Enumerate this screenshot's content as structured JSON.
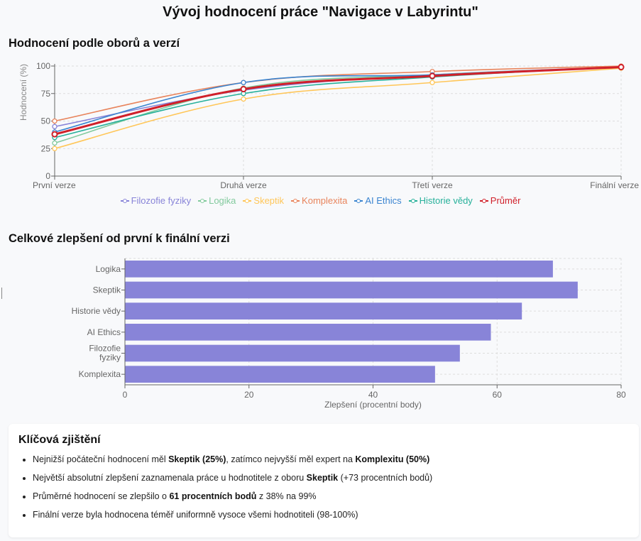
{
  "page": {
    "title": "Vývoj hodnocení práce \"Navigace v Labyrintu\""
  },
  "line_section": {
    "title": "Hodnocení podle oborů a verzí"
  },
  "bar_section": {
    "title": "Celkové zlepšení od první k finální verzi"
  },
  "chart_data": [
    {
      "type": "line",
      "title": "Hodnocení podle oborů a verzí",
      "xlabel": "",
      "ylabel": "Hodnocení (%)",
      "categories": [
        "První verze",
        "Druhá verze",
        "Třetí verze",
        "Finální verze"
      ],
      "ylim": [
        0,
        100
      ],
      "yticks": [
        0,
        25,
        50,
        75,
        100
      ],
      "grid": true,
      "legend_position": "bottom",
      "series": [
        {
          "name": "Filozofie fyziky",
          "color": "#8884d8",
          "values": [
            45,
            78,
            92,
            99
          ]
        },
        {
          "name": "Logika",
          "color": "#82ca9d",
          "values": [
            30,
            80,
            92,
            99
          ]
        },
        {
          "name": "Skeptik",
          "color": "#ffc658",
          "values": [
            25,
            70,
            85,
            98
          ]
        },
        {
          "name": "Komplexita",
          "color": "#e8845c",
          "values": [
            50,
            85,
            95,
            100
          ]
        },
        {
          "name": "AI Ethics",
          "color": "#3a84d0",
          "values": [
            40,
            85,
            92,
            99
          ]
        },
        {
          "name": "Historie vědy",
          "color": "#26b09a",
          "values": [
            35,
            75,
            90,
            99
          ]
        },
        {
          "name": "Průměr",
          "color": "#d0202a",
          "values": [
            38,
            79,
            91,
            99
          ]
        }
      ]
    },
    {
      "type": "bar",
      "orientation": "horizontal",
      "title": "Celkové zlepšení od první k finální verzi",
      "xlabel": "Zlepšení (procentní body)",
      "ylabel": "",
      "categories": [
        "Logika",
        "Skeptik",
        "Historie vědy",
        "AI Ethics",
        "Filozofie fyziky",
        "Komplexita"
      ],
      "values": [
        69,
        73,
        64,
        59,
        54,
        50
      ],
      "xlim": [
        0,
        80
      ],
      "xticks": [
        0,
        20,
        40,
        60,
        80
      ],
      "color": "#8884d8",
      "grid": true
    }
  ],
  "findings": {
    "title": "Klíčová zjištění",
    "items": [
      {
        "parts": [
          {
            "t": "Nejnižší počáteční hodnocení měl "
          },
          {
            "t": "Skeptik (25%)",
            "b": true
          },
          {
            "t": ", zatímco nejvyšší měl expert na "
          },
          {
            "t": "Komplexitu (50%)",
            "b": true
          }
        ]
      },
      {
        "parts": [
          {
            "t": "Největší absolutní zlepšení zaznamenala práce u hodnotitele z oboru "
          },
          {
            "t": "Skeptik",
            "b": true
          },
          {
            "t": " (+73 procentních bodů)"
          }
        ]
      },
      {
        "parts": [
          {
            "t": "Průměrné hodnocení se zlepšilo o "
          },
          {
            "t": "61 procentních bodů",
            "b": true
          },
          {
            "t": " z 38% na 99%"
          }
        ]
      },
      {
        "parts": [
          {
            "t": "Finální verze byla hodnocena téměř uniformně vysoce všemi hodnotiteli (98-100%)"
          }
        ]
      }
    ]
  }
}
